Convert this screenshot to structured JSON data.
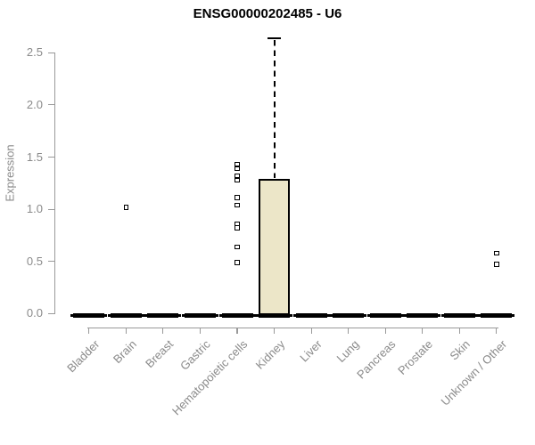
{
  "page": {
    "background": "#ffffff"
  },
  "chart_data": {
    "type": "boxplot",
    "title": "ENSG00000202485 - U6",
    "ylabel": "Expression",
    "xlabel": "",
    "ylim": [
      0,
      2.65
    ],
    "yticks": [
      0.0,
      0.5,
      1.0,
      1.5,
      2.0,
      2.5
    ],
    "grid": false,
    "legend": "none",
    "categories": [
      "Bladder",
      "Brain",
      "Breast",
      "Gastric",
      "Hematopoietic cells",
      "Kidney",
      "Liver",
      "Lung",
      "Pancreas",
      "Prostate",
      "Skin",
      "Unknown / Other"
    ],
    "boxes": [
      {
        "category": "Bladder",
        "whisker_low": 0,
        "q1": 0,
        "median": 0,
        "q3": 0,
        "whisker_high": 0,
        "outliers": []
      },
      {
        "category": "Brain",
        "whisker_low": 0,
        "q1": 0,
        "median": 0,
        "q3": 0,
        "whisker_high": 0,
        "outliers": [
          1.02
        ]
      },
      {
        "category": "Breast",
        "whisker_low": 0,
        "q1": 0,
        "median": 0,
        "q3": 0,
        "whisker_high": 0,
        "outliers": []
      },
      {
        "category": "Gastric",
        "whisker_low": 0,
        "q1": 0,
        "median": 0,
        "q3": 0,
        "whisker_high": 0,
        "outliers": []
      },
      {
        "category": "Hematopoietic cells",
        "whisker_low": 0,
        "q1": 0,
        "median": 0,
        "q3": 0,
        "whisker_high": 0,
        "outliers": [
          1.43,
          1.39,
          1.32,
          1.28,
          1.11,
          1.04,
          0.86,
          0.82,
          0.64,
          0.49
        ]
      },
      {
        "category": "Kidney",
        "whisker_low": 0,
        "q1": 0,
        "median": 0,
        "q3": 1.29,
        "whisker_high": 2.64,
        "outliers": []
      },
      {
        "category": "Liver",
        "whisker_low": 0,
        "q1": 0,
        "median": 0,
        "q3": 0,
        "whisker_high": 0,
        "outliers": []
      },
      {
        "category": "Lung",
        "whisker_low": 0,
        "q1": 0,
        "median": 0,
        "q3": 0,
        "whisker_high": 0,
        "outliers": []
      },
      {
        "category": "Pancreas",
        "whisker_low": 0,
        "q1": 0,
        "median": 0,
        "q3": 0,
        "whisker_high": 0,
        "outliers": []
      },
      {
        "category": "Prostate",
        "whisker_low": 0,
        "q1": 0,
        "median": 0,
        "q3": 0,
        "whisker_high": 0,
        "outliers": []
      },
      {
        "category": "Skin",
        "whisker_low": 0,
        "q1": 0,
        "median": 0,
        "q3": 0,
        "whisker_high": 0,
        "outliers": []
      },
      {
        "category": "Unknown / Other",
        "whisker_low": 0,
        "q1": 0,
        "median": 0,
        "q3": 0,
        "whisker_high": 0,
        "outliers": [
          0.58,
          0.47
        ]
      }
    ],
    "colors": {
      "box_fill": "#ece6c8",
      "box_border": "#000000",
      "axis": "#999999",
      "text": "#8a8a8a",
      "title": "#000000"
    }
  }
}
